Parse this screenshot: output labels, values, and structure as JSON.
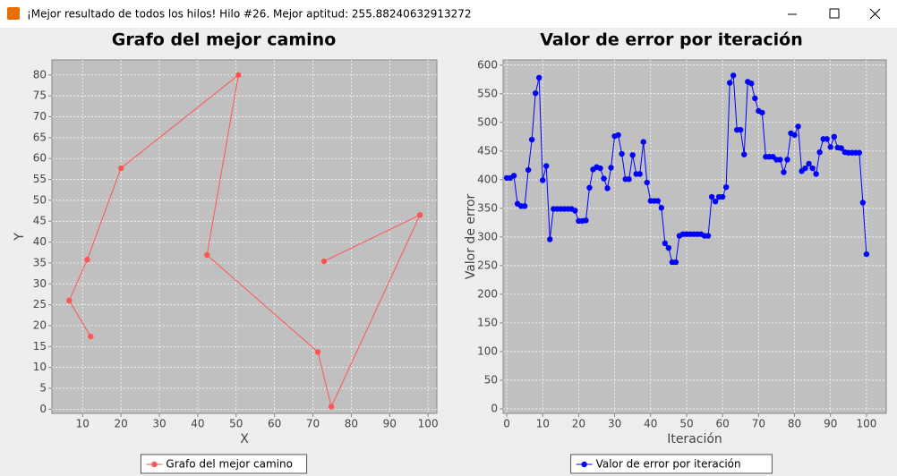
{
  "window": {
    "title": "¡Mejor resultado de todos los hilos! Hilo #26. Mejor aptitud: 255.88240632913272"
  },
  "chart_data": [
    {
      "type": "line",
      "title": "Grafo del mejor camino",
      "x_label": "X",
      "y_label": "Y",
      "grid": true,
      "xlim": [
        2,
        102.3
      ],
      "ylim": [
        -1,
        83.6
      ],
      "xticks": [
        10,
        20,
        30,
        40,
        50,
        60,
        70,
        80,
        90,
        100
      ],
      "yticks": [
        0,
        5,
        10,
        15,
        20,
        25,
        30,
        35,
        40,
        45,
        50,
        55,
        60,
        65,
        70,
        75,
        80
      ],
      "series": [
        {
          "name": "Grafo del mejor camino",
          "color": "#ff5555",
          "x": [
            12.1,
            6.5,
            11.2,
            20,
            50.6,
            42.4,
            71.3,
            74.8,
            97.9,
            72.9
          ],
          "values": [
            17.4,
            26,
            35.8,
            57.7,
            80,
            36.9,
            13.7,
            0.6,
            46.5,
            35.4
          ]
        }
      ]
    },
    {
      "type": "line",
      "title": "Valor de error por iteración",
      "x_label": "Iteración",
      "y_label": "Valor de error",
      "grid": true,
      "xlim": [
        -1,
        105.5
      ],
      "ylim": [
        -7.8,
        609
      ],
      "xticks": [
        0,
        10,
        20,
        30,
        40,
        50,
        60,
        70,
        80,
        90,
        100
      ],
      "yticks": [
        0,
        50,
        100,
        150,
        200,
        250,
        300,
        350,
        400,
        450,
        500,
        550,
        600
      ],
      "series": [
        {
          "name": "Valor de error por iteración",
          "color": "#0000ff",
          "x": [
            0,
            1,
            2,
            3,
            4,
            5,
            6,
            7,
            8,
            9,
            10,
            11,
            12,
            13,
            14,
            15,
            16,
            17,
            18,
            19,
            20,
            21,
            22,
            23,
            24,
            25,
            26,
            27,
            28,
            29,
            30,
            31,
            32,
            33,
            34,
            35,
            36,
            37,
            38,
            39,
            40,
            41,
            42,
            43,
            44,
            45,
            46,
            47,
            48,
            49,
            50,
            51,
            52,
            53,
            54,
            55,
            56,
            57,
            58,
            59,
            60,
            61,
            62,
            63,
            64,
            65,
            66,
            67,
            68,
            69,
            70,
            71,
            72,
            73,
            74,
            75,
            76,
            77,
            78,
            79,
            80,
            81,
            82,
            83,
            84,
            85,
            86,
            87,
            88,
            89,
            90,
            91,
            92,
            93,
            94,
            95,
            96,
            97,
            98,
            99,
            100
          ],
          "values": [
            403,
            403,
            407,
            358,
            354,
            354,
            417,
            470,
            551,
            578,
            399,
            424,
            296,
            349,
            349,
            349,
            349,
            349,
            349,
            346,
            328,
            328,
            329,
            386,
            418,
            422,
            420,
            402,
            385,
            421,
            476,
            478,
            445,
            401,
            401,
            443,
            410,
            410,
            466,
            395,
            363,
            363,
            363,
            351,
            289,
            281,
            256,
            256,
            302,
            305,
            305,
            305,
            305,
            305,
            305,
            302,
            302,
            370,
            362,
            370,
            370,
            387,
            569,
            582,
            487,
            487,
            444,
            571,
            568,
            542,
            520,
            517,
            440,
            440,
            440,
            435,
            435,
            413,
            435,
            481,
            478,
            493,
            415,
            420,
            428,
            420,
            410,
            448,
            471,
            471,
            457,
            475,
            456,
            455,
            448,
            447,
            447,
            447,
            447,
            360,
            270
          ]
        }
      ]
    }
  ]
}
